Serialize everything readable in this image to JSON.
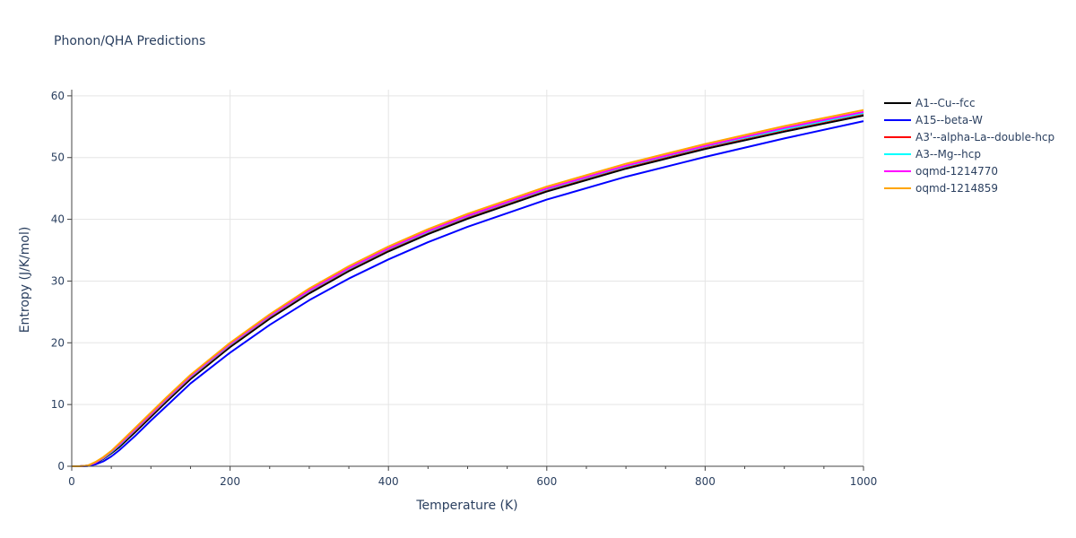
{
  "chart_data": {
    "type": "line",
    "title": "Phonon/QHA Predictions",
    "xlabel": "Temperature (K)",
    "ylabel": "Entropy (J/K/mol)",
    "xlim": [
      0,
      1000
    ],
    "ylim": [
      0,
      61
    ],
    "xticks": [
      0,
      200,
      400,
      600,
      800,
      1000
    ],
    "yticks": [
      0,
      10,
      20,
      30,
      40,
      50,
      60
    ],
    "grid": true,
    "legend_position": "top-right",
    "x": [
      0,
      10,
      20,
      30,
      40,
      50,
      60,
      80,
      100,
      120,
      150,
      200,
      250,
      300,
      350,
      400,
      450,
      500,
      600,
      700,
      800,
      900,
      1000
    ],
    "series": [
      {
        "name": "A1--Cu--fcc",
        "color": "#000000",
        "values": [
          0,
          0,
          0.1,
          0.5,
          1.2,
          2.1,
          3.1,
          5.5,
          8.0,
          10.5,
          14.1,
          19.3,
          23.9,
          28.0,
          31.6,
          34.8,
          37.6,
          40.1,
          44.5,
          48.2,
          51.4,
          54.2,
          56.8
        ]
      },
      {
        "name": "A15--beta-W",
        "color": "#0000ff",
        "values": [
          0,
          0,
          0.05,
          0.3,
          0.8,
          1.6,
          2.6,
          4.9,
          7.4,
          9.8,
          13.4,
          18.4,
          22.9,
          26.9,
          30.4,
          33.5,
          36.3,
          38.8,
          43.2,
          46.9,
          50.1,
          53.1,
          55.9
        ]
      },
      {
        "name": "A3'--alpha-La--double-hcp",
        "color": "#ff0000",
        "values": [
          0,
          0,
          0.1,
          0.6,
          1.3,
          2.3,
          3.4,
          5.8,
          8.3,
          10.8,
          14.4,
          19.6,
          24.2,
          28.3,
          31.9,
          35.1,
          37.9,
          40.4,
          44.8,
          48.5,
          51.7,
          54.5,
          57.1
        ]
      },
      {
        "name": "A3--Mg--hcp",
        "color": "#00ffff",
        "values": [
          0,
          0,
          0.1,
          0.6,
          1.3,
          2.3,
          3.4,
          5.9,
          8.4,
          10.9,
          14.5,
          19.7,
          24.3,
          28.4,
          32.0,
          35.2,
          38.0,
          40.5,
          44.9,
          48.6,
          51.8,
          54.6,
          57.2
        ]
      },
      {
        "name": "oqmd-1214770",
        "color": "#ff00ff",
        "values": [
          0,
          0,
          0.1,
          0.6,
          1.4,
          2.4,
          3.5,
          6.0,
          8.5,
          11.0,
          14.6,
          19.8,
          24.4,
          28.5,
          32.1,
          35.3,
          38.1,
          40.6,
          45.0,
          48.7,
          51.9,
          54.8,
          57.4
        ]
      },
      {
        "name": "oqmd-1214859",
        "color": "#ffa500",
        "values": [
          0,
          0,
          0.1,
          0.7,
          1.5,
          2.5,
          3.7,
          6.2,
          8.7,
          11.2,
          14.8,
          20.0,
          24.6,
          28.8,
          32.4,
          35.6,
          38.4,
          40.9,
          45.3,
          49.0,
          52.2,
          55.1,
          57.7
        ]
      }
    ]
  }
}
